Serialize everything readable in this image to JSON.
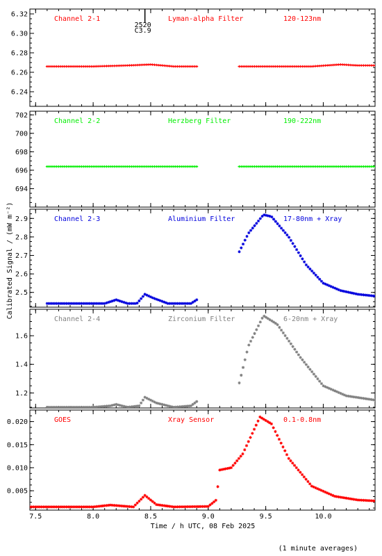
{
  "figure": {
    "ylabel": "Calibrated Signal / (mW m⁻²)",
    "xlabel": "Time / h UTC, 08 Feb 2025",
    "footnote": "(1 minute averages)",
    "flare_marker": {
      "line1": "2520",
      "line2": "C3.9",
      "time": 8.45
    }
  },
  "chart_data": [
    {
      "type": "scatter",
      "channel": "Channel 2-1",
      "filter": "Lyman-alpha Filter",
      "band": "120-123nm",
      "color": "#ff0000",
      "marker": "+",
      "xlim": [
        7.45,
        10.45
      ],
      "ylim": [
        6.225,
        6.325
      ],
      "yticks": [
        6.24,
        6.26,
        6.28,
        6.3,
        6.32
      ],
      "ydec": 2,
      "segments": [
        {
          "x0": 7.6,
          "x1": 8.9,
          "points": [
            [
              7.6,
              6.266
            ],
            [
              8.0,
              6.266
            ],
            [
              8.3,
              6.267
            ],
            [
              8.5,
              6.268
            ],
            [
              8.7,
              6.266
            ],
            [
              8.9,
              6.266
            ]
          ]
        },
        {
          "x0": 9.27,
          "x1": 10.45,
          "points": [
            [
              9.27,
              6.266
            ],
            [
              9.6,
              6.266
            ],
            [
              9.9,
              6.266
            ],
            [
              10.15,
              6.268
            ],
            [
              10.3,
              6.267
            ],
            [
              10.45,
              6.267
            ]
          ]
        }
      ]
    },
    {
      "type": "scatter",
      "channel": "Channel 2-2",
      "filter": "Herzberg Filter",
      "band": "190-222nm",
      "color": "#00ee00",
      "marker": "+",
      "xlim": [
        7.45,
        10.45
      ],
      "ylim": [
        692.0,
        702.4
      ],
      "yticks": [
        694,
        696,
        698,
        700,
        702
      ],
      "ydec": 0,
      "segments": [
        {
          "x0": 7.6,
          "x1": 8.9,
          "points": [
            [
              7.6,
              696.4
            ],
            [
              8.9,
              696.4
            ]
          ]
        },
        {
          "x0": 9.27,
          "x1": 10.45,
          "points": [
            [
              9.27,
              696.4
            ],
            [
              10.45,
              696.4
            ]
          ]
        }
      ]
    },
    {
      "type": "scatter",
      "channel": "Channel 2-3",
      "filter": "Aluminium Filter",
      "band": "17-80nm + Xray",
      "color": "#0000dd",
      "marker": "*",
      "xlim": [
        7.45,
        10.45
      ],
      "ylim": [
        2.42,
        2.95
      ],
      "yticks": [
        2.5,
        2.6,
        2.7,
        2.8,
        2.9
      ],
      "ydec": 1,
      "segments": [
        {
          "x0": 7.6,
          "x1": 8.9,
          "points": [
            [
              7.6,
              2.44
            ],
            [
              8.1,
              2.44
            ],
            [
              8.2,
              2.46
            ],
            [
              8.3,
              2.44
            ],
            [
              8.38,
              2.44
            ],
            [
              8.45,
              2.49
            ],
            [
              8.52,
              2.47
            ],
            [
              8.65,
              2.44
            ],
            [
              8.85,
              2.44
            ],
            [
              8.9,
              2.46
            ]
          ]
        },
        {
          "x0": 9.27,
          "x1": 10.45,
          "points": [
            [
              9.27,
              2.72
            ],
            [
              9.35,
              2.82
            ],
            [
              9.48,
              2.92
            ],
            [
              9.55,
              2.91
            ],
            [
              9.7,
              2.8
            ],
            [
              9.85,
              2.65
            ],
            [
              10.0,
              2.55
            ],
            [
              10.15,
              2.51
            ],
            [
              10.3,
              2.49
            ],
            [
              10.45,
              2.48
            ]
          ]
        }
      ]
    },
    {
      "type": "scatter",
      "channel": "Channel 2-4",
      "filter": "Zirconium Filter",
      "band": "6-20nm + Xray",
      "color": "#808080",
      "marker": "*",
      "xlim": [
        7.45,
        10.45
      ],
      "ylim": [
        1.095,
        1.785
      ],
      "yticks": [
        1.2,
        1.4,
        1.6
      ],
      "ydec": 1,
      "segments": [
        {
          "x0": 7.6,
          "x1": 8.9,
          "points": [
            [
              7.6,
              1.1
            ],
            [
              8.0,
              1.1
            ],
            [
              8.15,
              1.11
            ],
            [
              8.2,
              1.12
            ],
            [
              8.3,
              1.1
            ],
            [
              8.4,
              1.11
            ],
            [
              8.45,
              1.17
            ],
            [
              8.55,
              1.13
            ],
            [
              8.7,
              1.1
            ],
            [
              8.85,
              1.11
            ],
            [
              8.9,
              1.14
            ]
          ]
        },
        {
          "x0": 9.27,
          "x1": 10.45,
          "points": [
            [
              9.27,
              1.27
            ],
            [
              9.35,
              1.53
            ],
            [
              9.48,
              1.74
            ],
            [
              9.6,
              1.68
            ],
            [
              9.8,
              1.45
            ],
            [
              10.0,
              1.25
            ],
            [
              10.2,
              1.18
            ],
            [
              10.45,
              1.15
            ]
          ]
        }
      ]
    },
    {
      "type": "scatter",
      "channel": "GOES",
      "filter": "Xray Sensor",
      "band": "0.1-0.8nm",
      "color": "#ff0000",
      "marker": "*",
      "xlim": [
        7.45,
        10.45
      ],
      "ylim": [
        0.0008,
        0.0225
      ],
      "yticks": [
        0.005,
        0.01,
        0.015,
        0.02
      ],
      "ydec": 3,
      "segments": [
        {
          "x0": 7.45,
          "x1": 10.45,
          "points": [
            [
              7.45,
              0.0015
            ],
            [
              8.0,
              0.0015
            ],
            [
              8.15,
              0.0019
            ],
            [
              8.25,
              0.0017
            ],
            [
              8.35,
              0.0015
            ],
            [
              8.45,
              0.004
            ],
            [
              8.55,
              0.002
            ],
            [
              8.7,
              0.0015
            ],
            [
              9.0,
              0.0016
            ],
            [
              9.07,
              0.003
            ],
            [
              9.1,
              0.0095
            ],
            [
              9.2,
              0.01
            ],
            [
              9.3,
              0.013
            ],
            [
              9.45,
              0.021
            ],
            [
              9.55,
              0.0195
            ],
            [
              9.7,
              0.012
            ],
            [
              9.9,
              0.006
            ],
            [
              10.1,
              0.0038
            ],
            [
              10.3,
              0.003
            ],
            [
              10.45,
              0.0028
            ]
          ]
        }
      ]
    }
  ],
  "xaxis": {
    "ticks": [
      7.5,
      8.0,
      8.5,
      9.0,
      9.5,
      10.0
    ],
    "ticklabels": [
      "7.5",
      "8.0",
      "8.5",
      "9.0",
      "9.5",
      "10.0"
    ]
  }
}
